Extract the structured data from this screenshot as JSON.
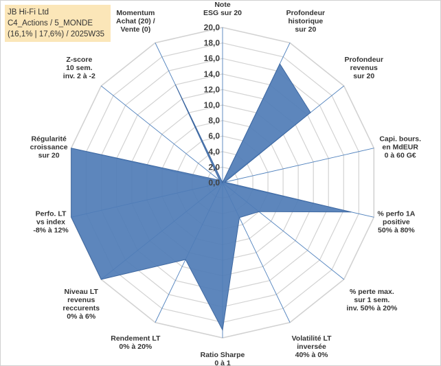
{
  "info_box": {
    "company": "JB Hi-Fi Ltd",
    "category": "C4_Actions / 5_MONDE",
    "stats": "(16,1% | 17,6%) / 2025W35",
    "background_color": "#fbe6b8"
  },
  "chart_data": {
    "type": "radar",
    "axes": [
      {
        "label": [
          "Note",
          "ESG sur 20"
        ],
        "value": 0.0
      },
      {
        "label": [
          "Profondeur",
          "historique",
          "sur 20"
        ],
        "value": 17.0
      },
      {
        "label": [
          "Profondeur",
          "revenus",
          "sur 20"
        ],
        "value": 14.5
      },
      {
        "label": [
          "Capi. bours.",
          "en MdEUR",
          "0 à 60 G€"
        ],
        "value": 0.3
      },
      {
        "label": [
          "% perfo 1A",
          "positive",
          "50% à 80%"
        ],
        "value": 17.0
      },
      {
        "label": [
          "% perte max.",
          "sur 1 sem.",
          "inv. 50% à 20%"
        ],
        "value": 6.0
      },
      {
        "label": [
          "Volatilité LT",
          "inversée",
          "40% à 0%"
        ],
        "value": 5.0
      },
      {
        "label": [
          "Ratio Sharpe",
          "0 à 1"
        ],
        "value": 19.0
      },
      {
        "label": [
          "Rendement LT",
          "0% à 20%"
        ],
        "value": 11.0
      },
      {
        "label": [
          "Niveau LT",
          "revenus",
          "reccurents",
          "0% à 6%"
        ],
        "value": 20.0
      },
      {
        "label": [
          "Perfo. LT",
          "vs index",
          "-8% à 12%"
        ],
        "value": 20.0
      },
      {
        "label": [
          "Régularité",
          "croissance",
          "sur 20"
        ],
        "value": 20.0
      },
      {
        "label": [
          "Z-score",
          "10 sem.",
          "inv. 2 à -2"
        ],
        "value": 0.5
      },
      {
        "label": [
          "Momentum",
          "Achat (20) /",
          "Vente (0)"
        ],
        "value": 14.0
      }
    ],
    "r_range": [
      0,
      20
    ],
    "r_ticks": [
      "0,0",
      "2,0",
      "4,0",
      "6,0",
      "8,0",
      "10,0",
      "12,0",
      "14,0",
      "16,0",
      "18,0",
      "20,0"
    ],
    "grid": true,
    "colors": {
      "fill": "#4f7cb6",
      "stroke": "#3d67a0",
      "grid": "#d2d2d2",
      "spoke": "#4f81bd"
    }
  }
}
